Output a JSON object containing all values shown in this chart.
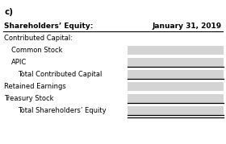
{
  "title": "c)",
  "header_left": "Shareholders’ Equity:",
  "header_right": "January 31, 2019",
  "rows": [
    {
      "label": "Contributed Capital:",
      "indent": 0,
      "box": false,
      "underline": false,
      "double_underline": false
    },
    {
      "label": "Common Stock",
      "indent": 1,
      "box": true,
      "underline": false,
      "double_underline": false
    },
    {
      "label": "APIC",
      "indent": 1,
      "box": true,
      "underline": true,
      "double_underline": false
    },
    {
      "label": "Total Contributed Capital",
      "indent": 2,
      "box": true,
      "underline": true,
      "double_underline": false
    },
    {
      "label": "Retained Earnings",
      "indent": 0,
      "box": true,
      "underline": false,
      "double_underline": false
    },
    {
      "label": "Treasury Stock",
      "indent": 0,
      "box": true,
      "underline": true,
      "double_underline": false
    },
    {
      "label": "Total Shareholders’ Equity",
      "indent": 2,
      "box": true,
      "underline": false,
      "double_underline": true
    }
  ],
  "box_color": "#d4d4d4",
  "background": "#ffffff",
  "text_color": "#000000",
  "header_fontsize": 6.5,
  "label_fontsize": 6.0,
  "title_fontsize": 7.5,
  "fig_width": 2.8,
  "fig_height": 1.79,
  "dpi": 100
}
